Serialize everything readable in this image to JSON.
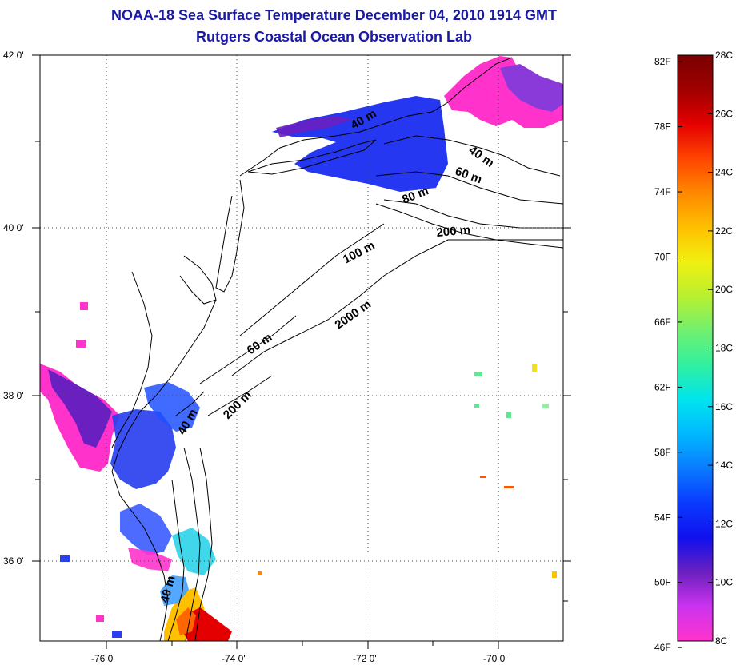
{
  "header": {
    "title": "NOAA-18 Sea Surface Temperature December 04, 2010 1914 GMT",
    "subtitle": "Rutgers Coastal Ocean Observation Lab"
  },
  "map": {
    "lat_labels": [
      "42 0'",
      "40 0'",
      "38 0'",
      "36 0'"
    ],
    "lon_labels": [
      "-76 0'",
      "-74 0'",
      "-72 0'",
      "-70 0'"
    ],
    "lat_range": [
      35.0,
      42.0
    ],
    "lon_range": [
      -77.0,
      -69.0
    ],
    "grid": "dotted",
    "contour_labels": [
      "40 m",
      "60 m",
      "80 m",
      "200 m",
      "100 m",
      "2000 m",
      "60 m",
      "200 m",
      "40 m",
      "40 m"
    ]
  },
  "colorbar": {
    "f_labels": [
      "82F",
      "78F",
      "74F",
      "70F",
      "66F",
      "62F",
      "58F",
      "54F",
      "50F",
      "46F"
    ],
    "c_labels": [
      "28C",
      "26C",
      "24C",
      "22C",
      "20C",
      "18C",
      "16C",
      "14C",
      "12C",
      "10C",
      "8C"
    ],
    "range_c": [
      8,
      28
    ],
    "colors": [
      "#ff33cc",
      "#cc33ee",
      "#6a20c0",
      "#1010ee",
      "#0a3aff",
      "#0a7aff",
      "#00b8ff",
      "#00e4ee",
      "#30f0a0",
      "#70f070",
      "#b8f030",
      "#f0f010",
      "#ffc000",
      "#ff8800",
      "#ff4400",
      "#e40000",
      "#a00000",
      "#7a0000"
    ]
  }
}
